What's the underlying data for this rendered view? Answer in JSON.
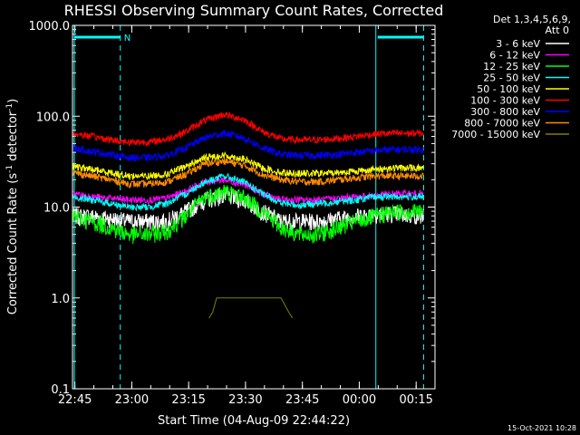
{
  "chart_data": {
    "type": "line",
    "title": "RHESSI Observing Summary Count Rates, Corrected",
    "ylabel_pre": "Corrected Count Rate (s",
    "ylabel_sup1": "-1",
    "ylabel_mid": " detector",
    "ylabel_sup2": "-1",
    "ylabel_post": ")",
    "xlabel": "Start Time (04-Aug-09 22:44:22)",
    "yscale": "log",
    "ylim": [
      0.1,
      1000.0
    ],
    "y_ticks": [
      "0.1",
      "1.0",
      "10.0",
      "100.0",
      "1000.0"
    ],
    "y_tick_values": [
      0.1,
      1,
      10,
      100,
      1000
    ],
    "xlim_minutes": [
      0,
      95.6
    ],
    "x_ticks": [
      "22:45",
      "23:00",
      "23:15",
      "23:30",
      "23:45",
      "00:00",
      "00:15"
    ],
    "x_tick_minutes": [
      0.63,
      15.63,
      30.63,
      45.63,
      60.63,
      75.63,
      90.63
    ],
    "legend_header": [
      "Det 1,3,4,5,6,9,",
      "Att 0"
    ],
    "legend_placement": "right-outside",
    "markers": {
      "cyan_solid_lines_min": [
        0.0,
        80.0
      ],
      "cyan_dashed_lines_min": [
        12.6,
        92.6
      ],
      "night_bars_min": [
        [
          0.0,
          12.6
        ],
        [
          80.0,
          92.6
        ]
      ],
      "night_label": "N",
      "color": "#00ffff"
    },
    "x_minutes": [
      0,
      5,
      10,
      15,
      20,
      25,
      30,
      35,
      40,
      45,
      50,
      55,
      60,
      65,
      70,
      75,
      80,
      85,
      92.6
    ],
    "series": [
      {
        "name": "3 - 6 keV",
        "color": "#ffffff",
        "values": [
          8,
          8,
          7.5,
          7,
          7,
          7,
          9,
          12,
          13.5,
          12,
          9,
          7,
          7,
          7,
          7.5,
          8,
          8.5,
          8.5,
          8
        ]
      },
      {
        "name": "6 - 12 keV",
        "color": "#ff00ff",
        "values": [
          14,
          13,
          12.5,
          12,
          12,
          12.5,
          15,
          19,
          20,
          18,
          14,
          12,
          12,
          12,
          12.5,
          13,
          13.5,
          14,
          14
        ]
      },
      {
        "name": "12 - 25 keV",
        "color": "#00ff00",
        "values": [
          8,
          7,
          6,
          5,
          5,
          5.5,
          8,
          13,
          15,
          13,
          9,
          6,
          5,
          5,
          6,
          7,
          8,
          9,
          9
        ]
      },
      {
        "name": "25 - 50 keV",
        "color": "#00ffff",
        "values": [
          13,
          12,
          11,
          10,
          10,
          11,
          14,
          19,
          22,
          19,
          14,
          11,
          10.5,
          11,
          11.5,
          12,
          13,
          13,
          13
        ]
      },
      {
        "name": "50 - 100 keV",
        "color": "#ffff00",
        "values": [
          28,
          26,
          24,
          22,
          22,
          23,
          28,
          35,
          37,
          34,
          27,
          24,
          23.5,
          23.5,
          24,
          25,
          26,
          27,
          27
        ]
      },
      {
        "name": "100 - 300 keV",
        "color": "#ff0000",
        "values": [
          65,
          60,
          55,
          52,
          52,
          56,
          68,
          90,
          105,
          92,
          68,
          56,
          55,
          55,
          57,
          60,
          64,
          65,
          65
        ]
      },
      {
        "name": "300 - 800 keV",
        "color": "#0000ff",
        "values": [
          45,
          41,
          38,
          35,
          35,
          37,
          45,
          58,
          65,
          58,
          45,
          38,
          37,
          37,
          38,
          40,
          42,
          43,
          43
        ]
      },
      {
        "name": "800 - 7000 keV",
        "color": "#ff8c00",
        "values": [
          24,
          22,
          20,
          18,
          18,
          19,
          23,
          30,
          32,
          29,
          23,
          20,
          19,
          19,
          20,
          21,
          22,
          22,
          22
        ]
      },
      {
        "name": "7000 - 15000 keV",
        "color": "#808000",
        "x_override": [
          36,
          37,
          38,
          45,
          50,
          55,
          57,
          58
        ],
        "values_override": [
          0.6,
          0.7,
          1.0,
          1.0,
          1.0,
          1.0,
          0.7,
          0.6
        ]
      }
    ],
    "grid": false,
    "timestamp": "15-Oct-2021 10:28"
  }
}
